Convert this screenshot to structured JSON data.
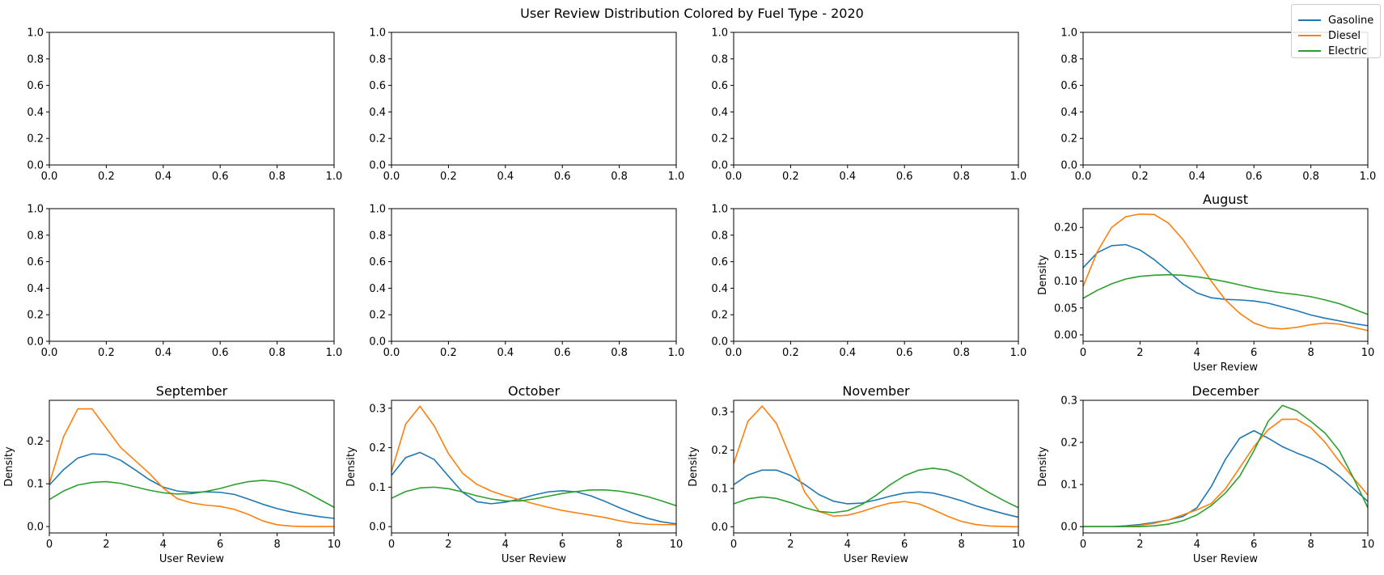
{
  "figure": {
    "suptitle": "User Review Distribution Colored by Fuel Type - 2020",
    "legend": [
      {
        "label": "Gasoline",
        "color": "#1f77b4"
      },
      {
        "label": "Diesel",
        "color": "#ff7f0e"
      },
      {
        "label": "Electric",
        "color": "#2ca02c"
      }
    ]
  },
  "chart_data": [
    {
      "type": "line",
      "title": "",
      "xlabel": "",
      "ylabel": "",
      "xlim": [
        0,
        1
      ],
      "ylim": [
        0,
        1
      ],
      "xticks": [
        "0.0",
        "0.2",
        "0.4",
        "0.6",
        "0.8",
        "1.0"
      ],
      "yticks": [
        "0.0",
        "0.2",
        "0.4",
        "0.6",
        "0.8",
        "1.0"
      ],
      "series": []
    },
    {
      "type": "line",
      "title": "",
      "xlabel": "",
      "ylabel": "",
      "xlim": [
        0,
        1
      ],
      "ylim": [
        0,
        1
      ],
      "xticks": [
        "0.0",
        "0.2",
        "0.4",
        "0.6",
        "0.8",
        "1.0"
      ],
      "yticks": [
        "0.0",
        "0.2",
        "0.4",
        "0.6",
        "0.8",
        "1.0"
      ],
      "series": []
    },
    {
      "type": "line",
      "title": "",
      "xlabel": "",
      "ylabel": "",
      "xlim": [
        0,
        1
      ],
      "ylim": [
        0,
        1
      ],
      "xticks": [
        "0.0",
        "0.2",
        "0.4",
        "0.6",
        "0.8",
        "1.0"
      ],
      "yticks": [
        "0.0",
        "0.2",
        "0.4",
        "0.6",
        "0.8",
        "1.0"
      ],
      "series": []
    },
    {
      "type": "line",
      "title": "",
      "xlabel": "",
      "ylabel": "",
      "xlim": [
        0,
        1
      ],
      "ylim": [
        0,
        1
      ],
      "xticks": [
        "0.0",
        "0.2",
        "0.4",
        "0.6",
        "0.8",
        "1.0"
      ],
      "yticks": [
        "0.0",
        "0.2",
        "0.4",
        "0.6",
        "0.8",
        "1.0"
      ],
      "series": []
    },
    {
      "type": "line",
      "title": "",
      "xlabel": "",
      "ylabel": "",
      "xlim": [
        0,
        1
      ],
      "ylim": [
        0,
        1
      ],
      "xticks": [
        "0.0",
        "0.2",
        "0.4",
        "0.6",
        "0.8",
        "1.0"
      ],
      "yticks": [
        "0.0",
        "0.2",
        "0.4",
        "0.6",
        "0.8",
        "1.0"
      ],
      "series": []
    },
    {
      "type": "line",
      "title": "",
      "xlabel": "",
      "ylabel": "",
      "xlim": [
        0,
        1
      ],
      "ylim": [
        0,
        1
      ],
      "xticks": [
        "0.0",
        "0.2",
        "0.4",
        "0.6",
        "0.8",
        "1.0"
      ],
      "yticks": [
        "0.0",
        "0.2",
        "0.4",
        "0.6",
        "0.8",
        "1.0"
      ],
      "series": []
    },
    {
      "type": "line",
      "title": "",
      "xlabel": "",
      "ylabel": "",
      "xlim": [
        0,
        1
      ],
      "ylim": [
        0,
        1
      ],
      "xticks": [
        "0.0",
        "0.2",
        "0.4",
        "0.6",
        "0.8",
        "1.0"
      ],
      "yticks": [
        "0.0",
        "0.2",
        "0.4",
        "0.6",
        "0.8",
        "1.0"
      ],
      "series": []
    },
    {
      "type": "line",
      "title": "August",
      "xlabel": "User Review",
      "ylabel": "Density",
      "xlim": [
        0,
        10
      ],
      "ylim": [
        -0.012,
        0.235
      ],
      "xticks": [
        0,
        2,
        4,
        6,
        8,
        10
      ],
      "yticks": [
        0.0,
        0.05,
        0.1,
        0.15,
        0.2,
        0.25
      ],
      "x": [
        0,
        0.5,
        1,
        1.5,
        2,
        2.5,
        3,
        3.5,
        4,
        4.5,
        5,
        5.5,
        6,
        6.5,
        7,
        7.5,
        8,
        8.5,
        9,
        9.5,
        10
      ],
      "series": [
        {
          "name": "Gasoline",
          "values": [
            0.125,
            0.153,
            0.166,
            0.168,
            0.158,
            0.14,
            0.118,
            0.095,
            0.078,
            0.069,
            0.066,
            0.065,
            0.063,
            0.059,
            0.052,
            0.045,
            0.037,
            0.031,
            0.026,
            0.021,
            0.017
          ]
        },
        {
          "name": "Diesel",
          "values": [
            0.09,
            0.155,
            0.2,
            0.22,
            0.225,
            0.224,
            0.208,
            0.178,
            0.14,
            0.1,
            0.065,
            0.04,
            0.022,
            0.013,
            0.011,
            0.014,
            0.019,
            0.022,
            0.02,
            0.014,
            0.008
          ]
        },
        {
          "name": "Electric",
          "values": [
            0.068,
            0.083,
            0.095,
            0.104,
            0.109,
            0.111,
            0.112,
            0.111,
            0.108,
            0.104,
            0.099,
            0.093,
            0.087,
            0.082,
            0.078,
            0.075,
            0.071,
            0.065,
            0.058,
            0.048,
            0.038
          ]
        }
      ]
    },
    {
      "type": "line",
      "title": "September",
      "xlabel": "User Review",
      "ylabel": "Density",
      "xlim": [
        0,
        10
      ],
      "ylim": [
        -0.015,
        0.295
      ],
      "xticks": [
        0,
        2,
        4,
        6,
        8,
        10
      ],
      "yticks": [
        0.0,
        0.1,
        0.2
      ],
      "x": [
        0,
        0.5,
        1,
        1.5,
        2,
        2.5,
        3,
        3.5,
        4,
        4.5,
        5,
        5.5,
        6,
        6.5,
        7,
        7.5,
        8,
        8.5,
        9,
        9.5,
        10
      ],
      "series": [
        {
          "name": "Gasoline",
          "values": [
            0.097,
            0.133,
            0.16,
            0.17,
            0.168,
            0.155,
            0.133,
            0.11,
            0.092,
            0.083,
            0.08,
            0.081,
            0.08,
            0.075,
            0.064,
            0.052,
            0.042,
            0.034,
            0.028,
            0.023,
            0.019
          ]
        },
        {
          "name": "Diesel",
          "values": [
            0.1,
            0.21,
            0.275,
            0.275,
            0.23,
            0.185,
            0.155,
            0.125,
            0.09,
            0.065,
            0.055,
            0.05,
            0.047,
            0.04,
            0.028,
            0.013,
            0.004,
            0.001,
            0.0,
            0.0,
            0.0
          ]
        },
        {
          "name": "Electric",
          "values": [
            0.063,
            0.083,
            0.097,
            0.103,
            0.105,
            0.101,
            0.093,
            0.085,
            0.079,
            0.076,
            0.077,
            0.082,
            0.089,
            0.098,
            0.105,
            0.108,
            0.105,
            0.096,
            0.081,
            0.063,
            0.045
          ]
        }
      ]
    },
    {
      "type": "line",
      "title": "October",
      "xlabel": "User Review",
      "ylabel": "Density",
      "xlim": [
        0,
        10
      ],
      "ylim": [
        -0.016,
        0.32
      ],
      "xticks": [
        0,
        2,
        4,
        6,
        8,
        10
      ],
      "yticks": [
        0.0,
        0.1,
        0.2,
        0.3
      ],
      "x": [
        0,
        0.5,
        1,
        1.5,
        2,
        2.5,
        3,
        3.5,
        4,
        4.5,
        5,
        5.5,
        6,
        6.5,
        7,
        7.5,
        8,
        8.5,
        9,
        9.5,
        10
      ],
      "series": [
        {
          "name": "Gasoline",
          "values": [
            0.13,
            0.175,
            0.188,
            0.17,
            0.128,
            0.087,
            0.063,
            0.058,
            0.062,
            0.07,
            0.08,
            0.088,
            0.091,
            0.088,
            0.078,
            0.064,
            0.048,
            0.034,
            0.021,
            0.012,
            0.007
          ]
        },
        {
          "name": "Diesel",
          "values": [
            0.14,
            0.26,
            0.305,
            0.255,
            0.185,
            0.135,
            0.107,
            0.09,
            0.078,
            0.068,
            0.058,
            0.049,
            0.041,
            0.035,
            0.029,
            0.023,
            0.015,
            0.009,
            0.006,
            0.005,
            0.005
          ]
        },
        {
          "name": "Electric",
          "values": [
            0.072,
            0.089,
            0.098,
            0.1,
            0.096,
            0.088,
            0.078,
            0.07,
            0.065,
            0.065,
            0.07,
            0.077,
            0.084,
            0.089,
            0.093,
            0.093,
            0.09,
            0.084,
            0.076,
            0.065,
            0.053
          ]
        }
      ]
    },
    {
      "type": "line",
      "title": "November",
      "xlabel": "User Review",
      "ylabel": "Density",
      "xlim": [
        0,
        10
      ],
      "ylim": [
        -0.016,
        0.33
      ],
      "xticks": [
        0,
        2,
        4,
        6,
        8,
        10
      ],
      "yticks": [
        0.0,
        0.1,
        0.2,
        0.3
      ],
      "x": [
        0,
        0.5,
        1,
        1.5,
        2,
        2.5,
        3,
        3.5,
        4,
        4.5,
        5,
        5.5,
        6,
        6.5,
        7,
        7.5,
        8,
        8.5,
        9,
        9.5,
        10
      ],
      "series": [
        {
          "name": "Gasoline",
          "values": [
            0.11,
            0.135,
            0.148,
            0.148,
            0.134,
            0.11,
            0.084,
            0.067,
            0.06,
            0.062,
            0.07,
            0.08,
            0.088,
            0.091,
            0.088,
            0.079,
            0.068,
            0.055,
            0.044,
            0.034,
            0.025
          ]
        },
        {
          "name": "Diesel",
          "values": [
            0.165,
            0.275,
            0.315,
            0.27,
            0.18,
            0.09,
            0.04,
            0.028,
            0.03,
            0.04,
            0.052,
            0.062,
            0.066,
            0.06,
            0.045,
            0.028,
            0.014,
            0.006,
            0.002,
            0.001,
            0.0
          ]
        },
        {
          "name": "Electric",
          "values": [
            0.06,
            0.073,
            0.078,
            0.074,
            0.063,
            0.05,
            0.04,
            0.037,
            0.042,
            0.058,
            0.082,
            0.11,
            0.133,
            0.148,
            0.153,
            0.148,
            0.133,
            0.11,
            0.088,
            0.068,
            0.05
          ]
        }
      ]
    },
    {
      "type": "line",
      "title": "December",
      "xlabel": "User Review",
      "ylabel": "Density",
      "xlim": [
        0,
        10
      ],
      "ylim": [
        -0.015,
        0.3
      ],
      "xticks": [
        0,
        2,
        4,
        6,
        8,
        10
      ],
      "yticks": [
        0.0,
        0.1,
        0.2,
        0.3
      ],
      "x": [
        0,
        0.5,
        1,
        1.5,
        2,
        2.5,
        3,
        3.5,
        4,
        4.5,
        5,
        5.5,
        6,
        6.5,
        7,
        7.5,
        8,
        8.5,
        9,
        9.5,
        10
      ],
      "series": [
        {
          "name": "Gasoline",
          "values": [
            0.0,
            0.0,
            0.0,
            0.002,
            0.005,
            0.01,
            0.016,
            0.024,
            0.045,
            0.095,
            0.16,
            0.21,
            0.228,
            0.21,
            0.19,
            0.175,
            0.162,
            0.145,
            0.12,
            0.09,
            0.06
          ]
        },
        {
          "name": "Diesel",
          "values": [
            0.0,
            0.0,
            0.0,
            0.0,
            0.003,
            0.008,
            0.016,
            0.028,
            0.04,
            0.055,
            0.09,
            0.14,
            0.19,
            0.23,
            0.255,
            0.255,
            0.235,
            0.2,
            0.155,
            0.115,
            0.075
          ]
        },
        {
          "name": "Electric",
          "values": [
            0.0,
            0.0,
            0.0,
            0.0,
            0.0,
            0.002,
            0.006,
            0.014,
            0.028,
            0.05,
            0.08,
            0.12,
            0.18,
            0.25,
            0.288,
            0.275,
            0.25,
            0.222,
            0.18,
            0.115,
            0.045
          ]
        }
      ]
    }
  ]
}
